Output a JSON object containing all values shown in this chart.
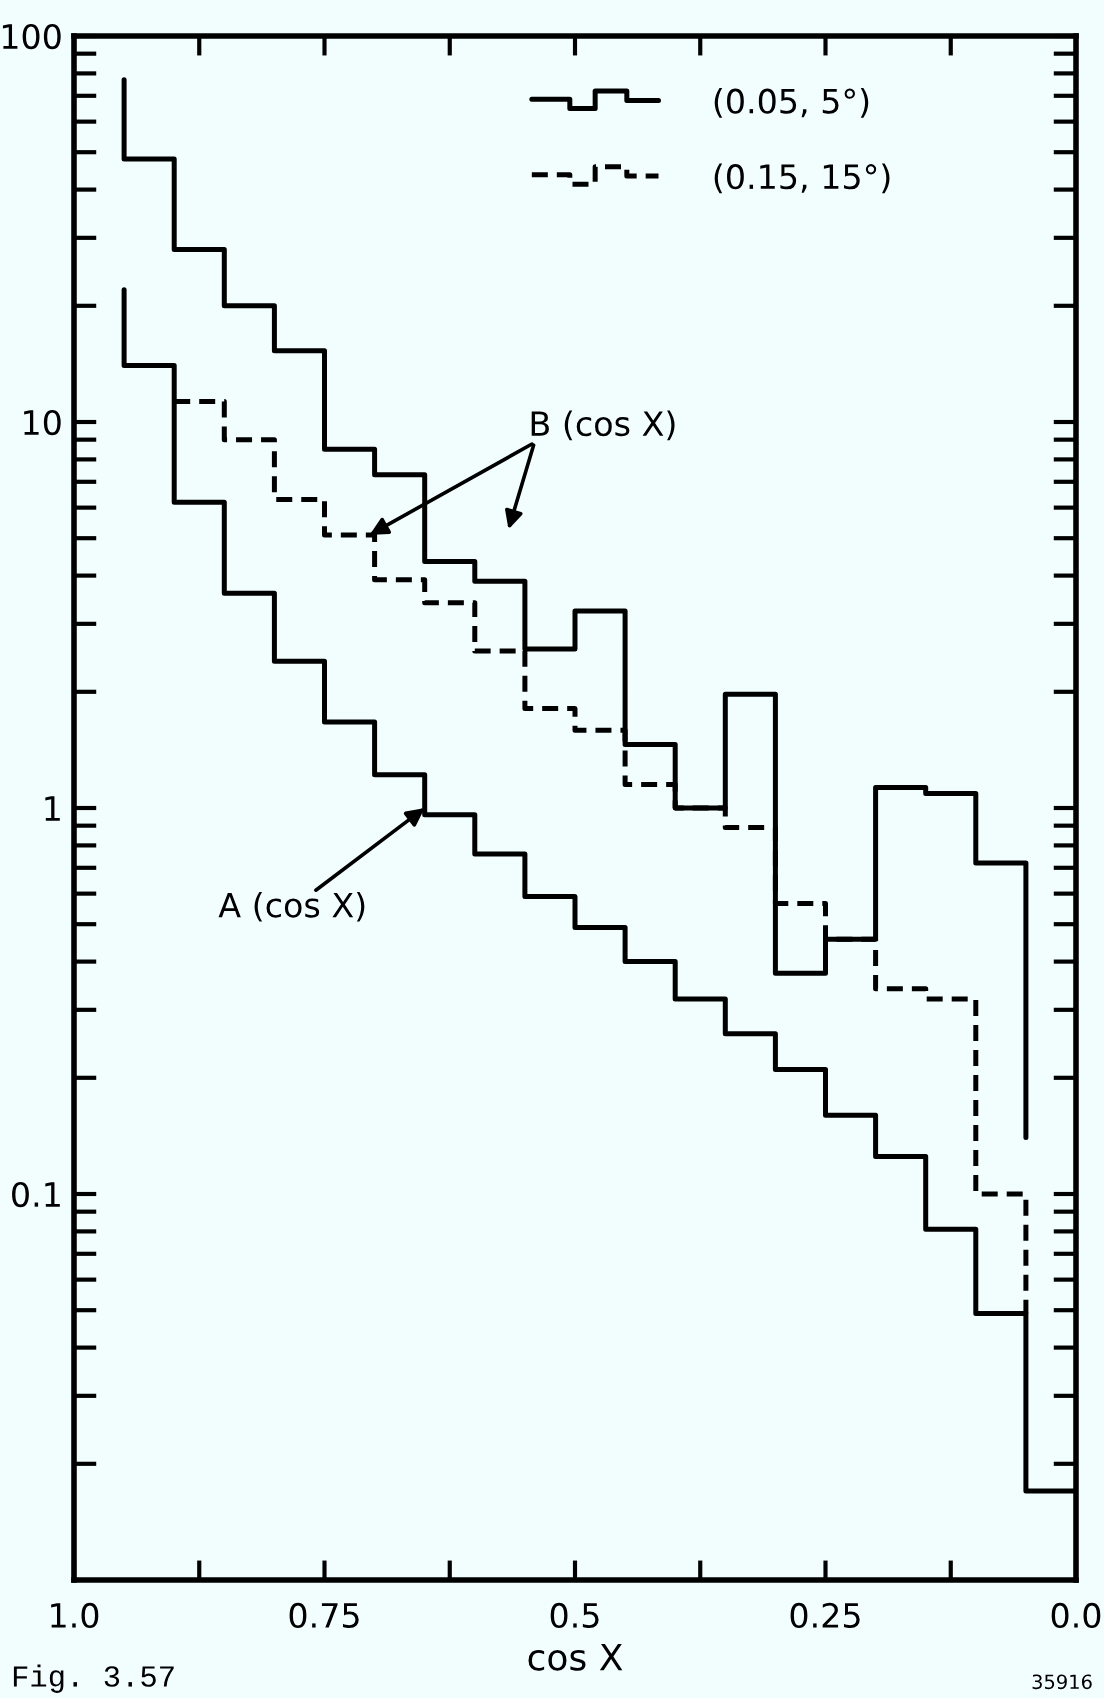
{
  "chart_data": {
    "type": "step",
    "xlabel": "cos X",
    "xlim": [
      1,
      0
    ],
    "xticks": [
      {
        "value": 1,
        "label": "1.0"
      },
      {
        "value": 0.875,
        "label": null
      },
      0.75,
      {
        "value": 0.625,
        "label": null
      },
      0.5,
      {
        "value": 0.375,
        "label": null
      },
      0.25,
      {
        "value": 0.125,
        "label": null
      },
      {
        "value": 0,
        "label": "0.0"
      }
    ],
    "ylim": [
      0.01,
      100
    ],
    "yticks": [
      {
        "value": 0.02,
        "label": null
      },
      {
        "value": 0.03,
        "label": null
      },
      {
        "value": 0.04,
        "label": null
      },
      {
        "value": 0.05,
        "label": null
      },
      {
        "value": 0.06,
        "label": null
      },
      {
        "value": 0.07,
        "label": null
      },
      {
        "value": 0.08,
        "label": null
      },
      {
        "value": 0.09,
        "label": null
      },
      0.1,
      {
        "value": 0.2,
        "label": null
      },
      {
        "value": 0.3,
        "label": null
      },
      {
        "value": 0.4,
        "label": null
      },
      {
        "value": 0.5,
        "label": null
      },
      {
        "value": 0.6,
        "label": null
      },
      {
        "value": 0.7,
        "label": null
      },
      {
        "value": 0.8,
        "label": null
      },
      {
        "value": 0.9,
        "label": null
      },
      1,
      {
        "value": 2,
        "label": null
      },
      {
        "value": 3,
        "label": null
      },
      {
        "value": 4,
        "label": null
      },
      {
        "value": 5,
        "label": null
      },
      {
        "value": 6,
        "label": null
      },
      {
        "value": 7,
        "label": null
      },
      {
        "value": 8,
        "label": null
      },
      {
        "value": 9,
        "label": null
      },
      10,
      {
        "value": 20,
        "label": null
      },
      {
        "value": 30,
        "label": null
      },
      {
        "value": 40,
        "label": null
      },
      {
        "value": 50,
        "label": null
      },
      {
        "value": 60,
        "label": null
      },
      {
        "value": 70,
        "label": null
      },
      {
        "value": 80,
        "label": null
      },
      {
        "value": 90,
        "label": null
      },
      100
    ],
    "log": true,
    "legend": "top right",
    "series": [
      {
        "color": "#000000",
        "line_style": "solid",
        "x": [
          0.95,
          0.9,
          0.85,
          0.8,
          0.75,
          0.7,
          0.65,
          0.6,
          0.55,
          0.5,
          0.45,
          0.4,
          0.35,
          0.3,
          0.25,
          0.2,
          0.15,
          0.1,
          0.05,
          0
        ],
        "values": [
          22,
          14,
          6.2,
          3.6,
          2.4,
          1.67,
          1.22,
          0.96,
          0.76,
          0.59,
          0.49,
          0.4,
          0.32,
          0.26,
          0.21,
          0.16,
          0.125,
          0.081,
          0.049,
          0.017
        ]
      },
      {
        "name": "(0.05, 5°)",
        "color": "#000000",
        "line_style": "solid",
        "x": [
          0.95,
          0.9,
          0.85,
          0.8,
          0.75,
          0.7,
          0.65,
          0.6,
          0.55,
          0.5,
          0.45,
          0.4,
          0.35,
          0.3,
          0.25,
          0.2,
          0.15,
          0.1,
          0.05,
          0.05
        ],
        "values": [
          77,
          48,
          28,
          20,
          15.3,
          8.5,
          7.3,
          4.35,
          3.87,
          2.58,
          3.24,
          1.46,
          1.0,
          1.97,
          0.373,
          0.457,
          1.13,
          1.09,
          0.72,
          0.14
        ]
      },
      {
        "name": "(0.15, 15°)",
        "color": "#000000",
        "line_style": "dashed",
        "x": [
          0.9,
          0.85,
          0.8,
          0.75,
          0.7,
          0.65,
          0.6,
          0.55,
          0.5,
          0.45,
          0.4,
          0.35,
          0.3,
          0.25,
          0.2,
          0.15,
          0.1,
          0.05,
          0.05
        ],
        "values": [
          11.3,
          11.3,
          9.0,
          6.3,
          5.1,
          3.9,
          3.4,
          2.55,
          1.81,
          1.59,
          1.15,
          1.0,
          0.89,
          0.566,
          0.457,
          0.34,
          0.32,
          0.1,
          0.049
        ]
      }
    ],
    "annotations": [
      {
        "text": "B (cos X)",
        "x": 0.705,
        "y": 5.1
      },
      {
        "text": "A (cos X)",
        "x": 0.65,
        "y": 1.0
      },
      "Fig. 3.57",
      "35916"
    ]
  }
}
